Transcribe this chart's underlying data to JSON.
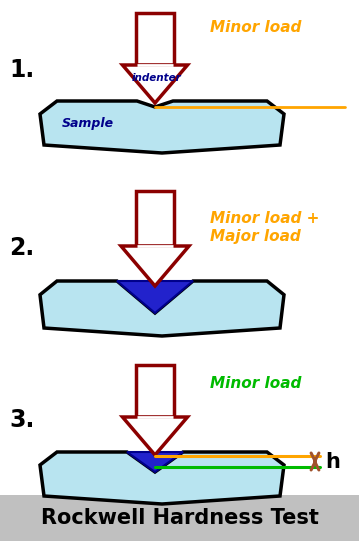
{
  "bg_color": "#ffffff",
  "title": "Rockwell Hardness Test",
  "title_bg": "#c0c0c0",
  "title_color": "#000000",
  "title_fontsize": 15,
  "sample_color": "#b8e4f0",
  "sample_border": "#000000",
  "arrow_fill": "#ffffff",
  "arrow_border": "#8b0000",
  "minor_load_color": "#ffa500",
  "green_line_color": "#00bb00",
  "indentation_fill": "#2222cc",
  "indentation_border": "#00008b",
  "h_arrow_color": "#a0522d",
  "label_step1": "1.",
  "label_step2": "2.",
  "label_step3": "3.",
  "text_indenter": "indenter",
  "text_sample": "Sample",
  "text_minor1": "Minor load",
  "text_minor_major": "Minor load +\nMajor load",
  "text_minor3": "Minor load",
  "text_h": "h",
  "lw": 2.5
}
